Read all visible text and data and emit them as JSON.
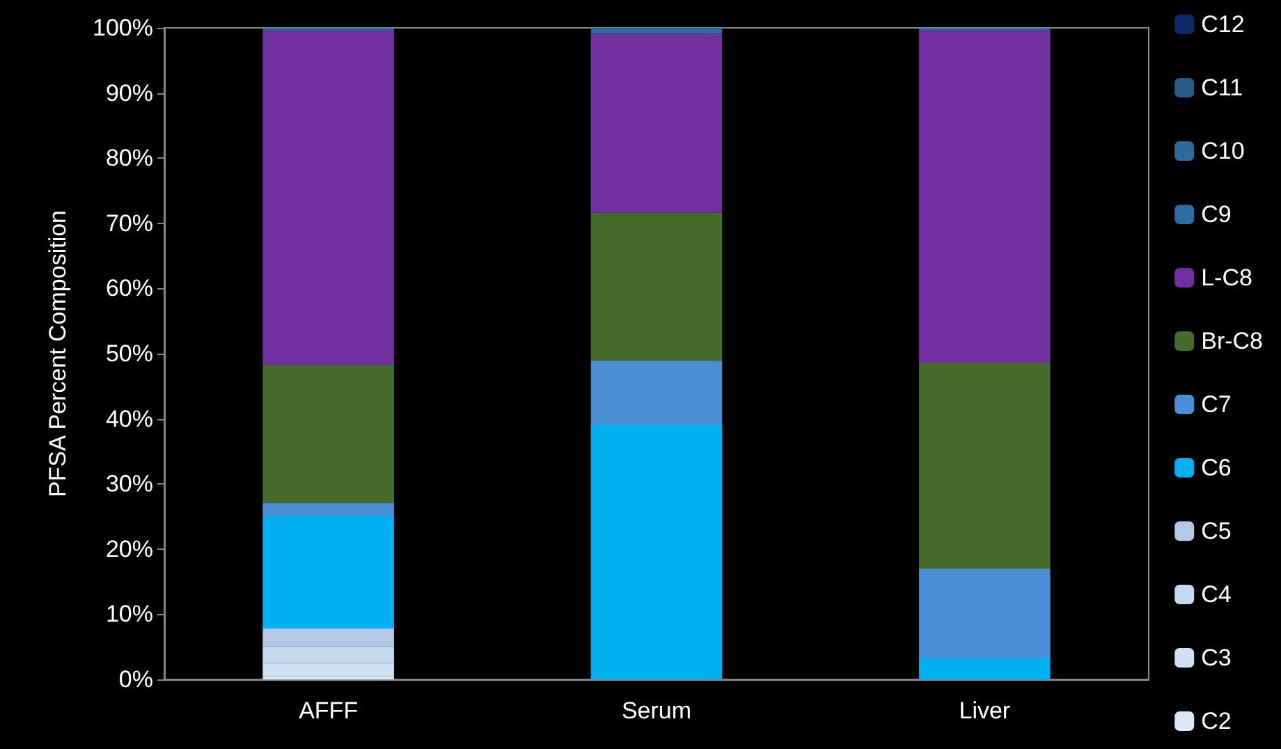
{
  "chart_data": {
    "type": "bar",
    "stacked": true,
    "ylabel": "PFSA Percent Composition",
    "categories": [
      "AFFF",
      "Serum",
      "Liver"
    ],
    "ylim": [
      0,
      100
    ],
    "yticks": [
      {
        "value": 0,
        "label": "0%"
      },
      {
        "value": 10,
        "label": "10%"
      },
      {
        "value": 20,
        "label": "20%"
      },
      {
        "value": 30,
        "label": "30%"
      },
      {
        "value": 40,
        "label": "40%"
      },
      {
        "value": 50,
        "label": "50%"
      },
      {
        "value": 60,
        "label": "60%"
      },
      {
        "value": 70,
        "label": "70%"
      },
      {
        "value": 80,
        "label": "80%"
      },
      {
        "value": 90,
        "label": "90%"
      },
      {
        "value": 100,
        "label": "100%"
      }
    ],
    "grid": false,
    "legend": "right",
    "series": [
      {
        "name": "C2",
        "color": "#dce9f6",
        "values": [
          0.5,
          0,
          0
        ]
      },
      {
        "name": "C3",
        "color": "#cfe0f3",
        "values": [
          2.0,
          0,
          0
        ]
      },
      {
        "name": "C4",
        "color": "#c5d9ef",
        "values": [
          2.6,
          0,
          0
        ]
      },
      {
        "name": "C5",
        "color": "#b4c7e7",
        "values": [
          2.7,
          0,
          0
        ]
      },
      {
        "name": "C6",
        "color": "#00b0f0",
        "values": [
          17.3,
          39.1,
          3.3
        ]
      },
      {
        "name": "C7",
        "color": "#4a8fd4",
        "values": [
          2.0,
          9.8,
          13.7
        ]
      },
      {
        "name": "Br-C8",
        "color": "#476b2c",
        "values": [
          21.2,
          22.7,
          31.6
        ]
      },
      {
        "name": "L-C8",
        "color": "#7030a0",
        "values": [
          51.3,
          27.5,
          51.0
        ]
      },
      {
        "name": "C9",
        "color": "#2e6da4",
        "values": [
          0.3,
          0.7,
          0.4
        ]
      },
      {
        "name": "C10",
        "color": "#2e6a9e",
        "values": [
          0.1,
          0.2,
          0
        ]
      },
      {
        "name": "C11",
        "color": "#2a5a8a",
        "values": [
          0,
          0,
          0
        ]
      },
      {
        "name": "C12",
        "color": "#0e2a6b",
        "values": [
          0,
          0,
          0
        ]
      }
    ]
  }
}
